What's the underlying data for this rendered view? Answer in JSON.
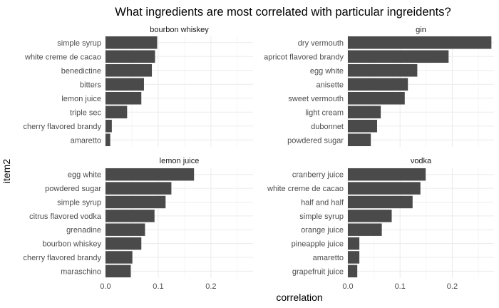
{
  "chart_data": {
    "type": "bar",
    "orientation": "horizontal",
    "title": "What ingredients are most correlated with particular ingreidents?",
    "xlabel": "correlation",
    "ylabel": "item2",
    "xlim": [
      0,
      0.28
    ],
    "xticks": [
      0.0,
      0.1,
      0.2
    ],
    "xtick_labels": [
      "0.0",
      "0.1",
      "0.2"
    ],
    "grid": true,
    "bar_color": "#4a4a4a",
    "facets": [
      {
        "name": "bourbon whiskey",
        "categories": [
          "simple syrup",
          "white creme de cacao",
          "benedictine",
          "bitters",
          "lemon juice",
          "triple sec",
          "cherry flavored brandy",
          "amaretto"
        ],
        "values": [
          0.098,
          0.094,
          0.088,
          0.073,
          0.068,
          0.041,
          0.012,
          0.009
        ]
      },
      {
        "name": "gin",
        "categories": [
          "dry vermouth",
          "apricot flavored brandy",
          "egg white",
          "anisette",
          "sweet vermouth",
          "light cream",
          "dubonnet",
          "powdered sugar"
        ],
        "values": [
          0.275,
          0.193,
          0.133,
          0.115,
          0.109,
          0.063,
          0.056,
          0.044
        ]
      },
      {
        "name": "lemon juice",
        "categories": [
          "egg white",
          "powdered sugar",
          "simple syrup",
          "citrus flavored vodka",
          "grenadine",
          "bourbon whiskey",
          "cherry flavored brandy",
          "maraschino"
        ],
        "values": [
          0.168,
          0.125,
          0.114,
          0.093,
          0.075,
          0.068,
          0.051,
          0.048
        ]
      },
      {
        "name": "vodka",
        "categories": [
          "cranberry juice",
          "white creme de cacao",
          "half and half",
          "simple syrup",
          "orange juice",
          "pineapple juice",
          "amaretto",
          "grapefruit juice"
        ],
        "values": [
          0.149,
          0.139,
          0.124,
          0.084,
          0.065,
          0.022,
          0.022,
          0.018
        ]
      }
    ]
  }
}
